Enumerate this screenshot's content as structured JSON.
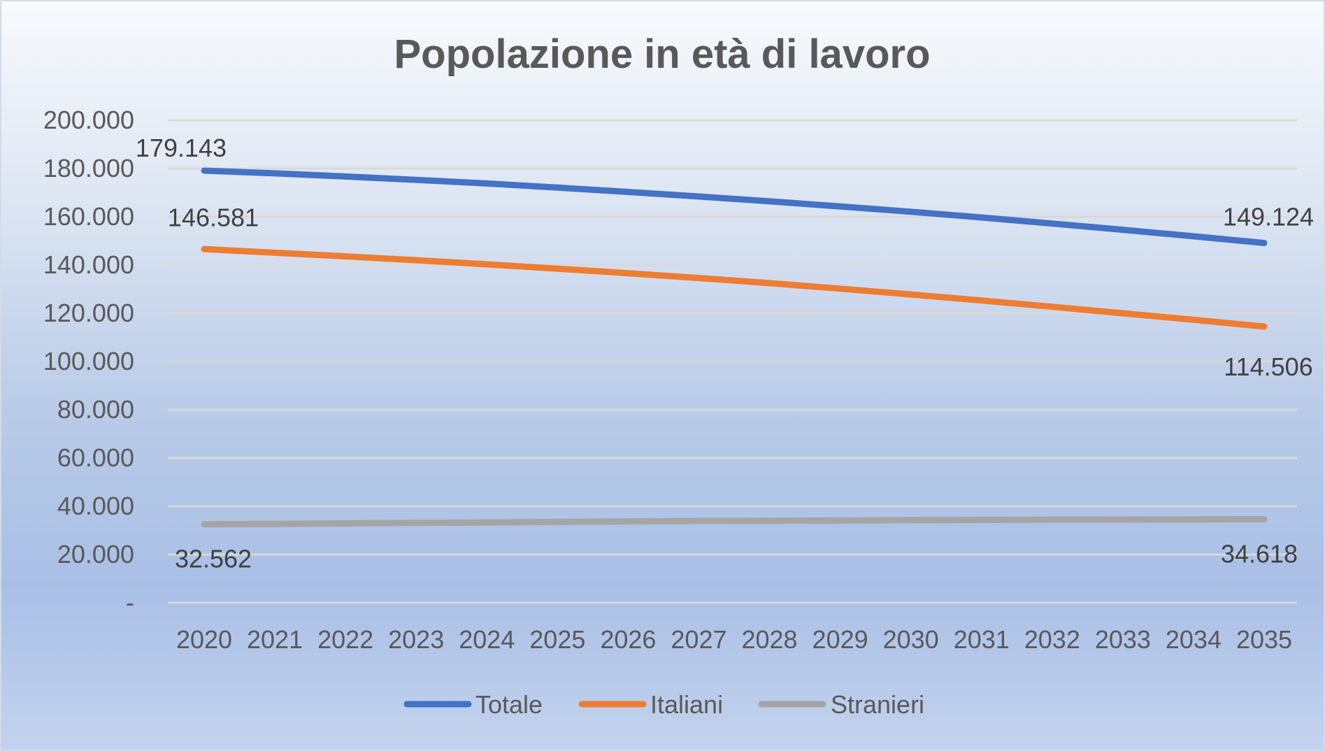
{
  "chart_data": {
    "type": "line",
    "title": "Popolazione in età di lavoro",
    "xlabel": "",
    "ylabel": "",
    "categories": [
      "2020",
      "2021",
      "2022",
      "2023",
      "2024",
      "2025",
      "2026",
      "2027",
      "2028",
      "2029",
      "2030",
      "2031",
      "2032",
      "2033",
      "2034",
      "2035"
    ],
    "ylim": [
      0,
      200000
    ],
    "yticks": [
      0,
      20000,
      40000,
      60000,
      80000,
      100000,
      120000,
      140000,
      160000,
      180000,
      200000
    ],
    "ytick_labels": [
      "-",
      "20.000",
      "40.000",
      "60.000",
      "80.000",
      "100.000",
      "120.000",
      "140.000",
      "160.000",
      "180.000",
      "200.000"
    ],
    "grid": true,
    "legend_position": "bottom",
    "series": [
      {
        "name": "Totale",
        "color": "#4472C4",
        "values": [
          179143,
          178000,
          176700,
          175300,
          173800,
          172100,
          170300,
          168400,
          166400,
          164300,
          162100,
          159700,
          157200,
          154600,
          151900,
          149124
        ],
        "labels": [
          {
            "index": 0,
            "text": "179.143"
          },
          {
            "index": 15,
            "text": "149.124"
          }
        ]
      },
      {
        "name": "Italiani",
        "color": "#ED7D31",
        "values": [
          146581,
          145100,
          143600,
          142000,
          140300,
          138500,
          136600,
          134600,
          132500,
          130200,
          127800,
          125300,
          122700,
          120000,
          117300,
          114506
        ],
        "labels": [
          {
            "index": 0,
            "text": "146.581"
          },
          {
            "index": 15,
            "text": "114.506"
          }
        ]
      },
      {
        "name": "Stranieri",
        "color": "#A5A5A5",
        "values": [
          32562,
          32700,
          32900,
          33100,
          33300,
          33500,
          33700,
          33900,
          34000,
          34100,
          34250,
          34350,
          34450,
          34500,
          34580,
          34618
        ],
        "labels": [
          {
            "index": 0,
            "text": "32.562"
          },
          {
            "index": 15,
            "text": "34.618"
          }
        ]
      }
    ]
  }
}
